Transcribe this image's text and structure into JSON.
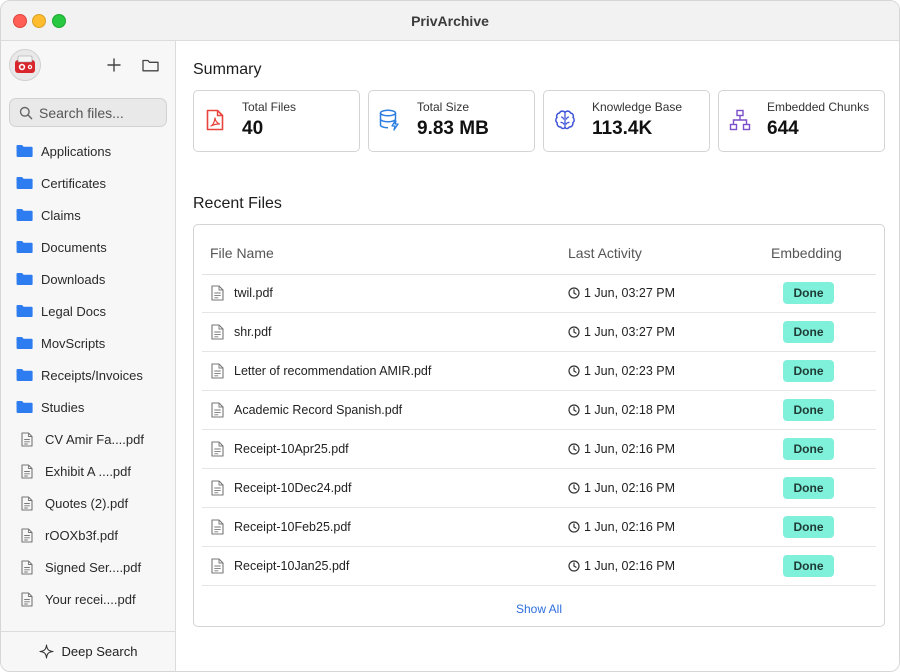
{
  "window": {
    "title": "PrivArchive"
  },
  "sidebar": {
    "search_placeholder": "Search files...",
    "folders": [
      {
        "label": "Applications"
      },
      {
        "label": "Certificates"
      },
      {
        "label": "Claims"
      },
      {
        "label": "Documents"
      },
      {
        "label": "Downloads"
      },
      {
        "label": "Legal Docs"
      },
      {
        "label": "MovScripts"
      },
      {
        "label": "Receipts/Invoices"
      },
      {
        "label": "Studies"
      }
    ],
    "files": [
      {
        "label": "CV Amir Fa....pdf"
      },
      {
        "label": "Exhibit A ....pdf"
      },
      {
        "label": "Quotes (2).pdf"
      },
      {
        "label": "rOOXb3f.pdf"
      },
      {
        "label": "Signed Ser....pdf"
      },
      {
        "label": "Your recei....pdf"
      }
    ],
    "deep_search_label": "Deep Search"
  },
  "summary": {
    "title": "Summary",
    "cards": [
      {
        "label": "Total Files",
        "value": "40",
        "icon": "pdf-file-icon"
      },
      {
        "label": "Total Size",
        "value": "9.83 MB",
        "icon": "database-icon"
      },
      {
        "label": "Knowledge Base",
        "value": "113.4K",
        "icon": "brain-icon"
      },
      {
        "label": "Embedded Chunks",
        "value": "644",
        "icon": "network-icon"
      }
    ]
  },
  "recent": {
    "title": "Recent Files",
    "columns": {
      "name": "File Name",
      "activity": "Last Activity",
      "embedding": "Embedding"
    },
    "rows": [
      {
        "name": "twil.pdf",
        "time": "1 Jun, 03:27 PM",
        "status": "Done"
      },
      {
        "name": "shr.pdf",
        "time": "1 Jun, 03:27 PM",
        "status": "Done"
      },
      {
        "name": "Letter of recommendation AMIR.pdf",
        "time": "1 Jun, 02:23 PM",
        "status": "Done"
      },
      {
        "name": "Academic Record Spanish.pdf",
        "time": "1 Jun, 02:18 PM",
        "status": "Done"
      },
      {
        "name": "Receipt-10Apr25.pdf",
        "time": "1 Jun, 02:16 PM",
        "status": "Done"
      },
      {
        "name": "Receipt-10Dec24.pdf",
        "time": "1 Jun, 02:16 PM",
        "status": "Done"
      },
      {
        "name": "Receipt-10Feb25.pdf",
        "time": "1 Jun, 02:16 PM",
        "status": "Done"
      },
      {
        "name": "Receipt-10Jan25.pdf",
        "time": "1 Jun, 02:16 PM",
        "status": "Done"
      }
    ],
    "show_all_label": "Show All"
  },
  "colors": {
    "accent": "#2f6fde",
    "folder": "#2d7cf0",
    "badge": "#7ff0d9",
    "pdf_icon": "#e8453c",
    "database_icon": "#2a7de1",
    "brain_icon": "#3f55d9",
    "network_icon": "#7a4fc9"
  }
}
